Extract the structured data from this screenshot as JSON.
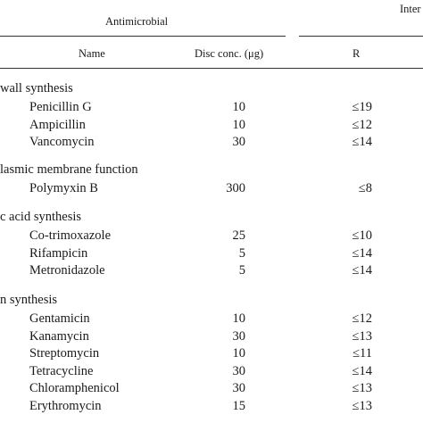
{
  "header": {
    "top_right_partial": "Inter",
    "group_title": "Antimicrobial",
    "col_name": "Name",
    "col_conc": "Disc conc. (μg)",
    "col_r": "R"
  },
  "sections": [
    {
      "title": "wall synthesis",
      "rows": [
        {
          "name": "Penicillin G",
          "conc": "10",
          "r": "≤19"
        },
        {
          "name": "Ampicillin",
          "conc": "10",
          "r": "≤12"
        },
        {
          "name": "Vancomycin",
          "conc": "30",
          "r": "≤14"
        }
      ]
    },
    {
      "title": "lasmic membrane function",
      "rows": [
        {
          "name": "Polymyxin B",
          "conc": "300",
          "r": "≤8"
        }
      ]
    },
    {
      "title": "c acid synthesis",
      "rows": [
        {
          "name": "Co-trimoxazole",
          "conc": "25",
          "r": "≤10"
        },
        {
          "name": "Rifampicin",
          "conc": "5",
          "r": "≤14"
        },
        {
          "name": "Metronidazole",
          "conc": "5",
          "r": "≤14"
        }
      ]
    },
    {
      "title": "n synthesis",
      "rows": [
        {
          "name": "Gentamicin",
          "conc": "10",
          "r": "≤12"
        },
        {
          "name": "Kanamycin",
          "conc": "30",
          "r": "≤13"
        },
        {
          "name": "Streptomycin",
          "conc": "10",
          "r": "≤11"
        },
        {
          "name": "Tetracycline",
          "conc": "30",
          "r": "≤14"
        },
        {
          "name": "Chloramphenicol",
          "conc": "30",
          "r": "≤13"
        },
        {
          "name": "Erythromycin",
          "conc": "15",
          "r": "≤13"
        }
      ]
    }
  ]
}
